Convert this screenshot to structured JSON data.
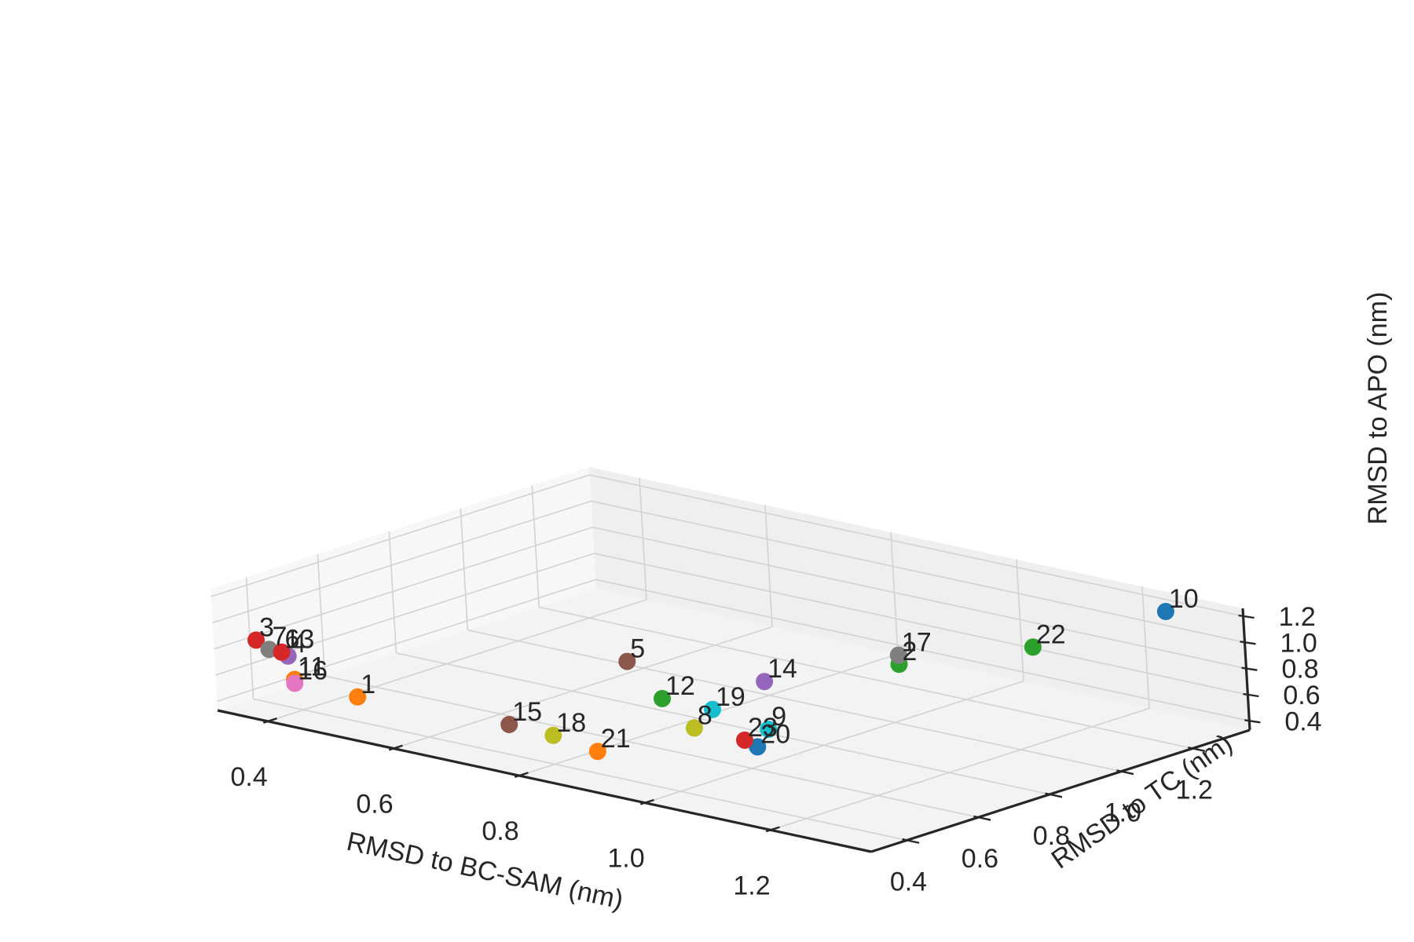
{
  "chart_data": {
    "type": "scatter",
    "projection": "3d",
    "title": "",
    "xlabel": "RMSD to BC-SAM (nm)",
    "ylabel": "RMSD to TC (nm)",
    "zlabel": "RMSD to APO (nm)",
    "xlim": [
      0.32,
      1.36
    ],
    "ylim": [
      0.3,
      1.36
    ],
    "zlim": [
      0.33,
      1.26
    ],
    "xticks": [
      "0.4",
      "0.6",
      "0.8",
      "1.0",
      "1.2"
    ],
    "yticks": [
      "0.4",
      "0.6",
      "0.8",
      "1.0",
      "1.2"
    ],
    "zticks": [
      "0.4",
      "0.6",
      "0.8",
      "1.0",
      "1.2"
    ],
    "grid": true,
    "legend": "none",
    "points": [
      {
        "label": "1",
        "x": 0.5,
        "y": 0.38,
        "z": 0.55,
        "color": "#ff7f0e"
      },
      {
        "label": "2",
        "x": 1.1,
        "y": 0.85,
        "z": 1.01,
        "color": "#2ca02c"
      },
      {
        "label": "3",
        "x": 0.33,
        "y": 0.4,
        "z": 0.79,
        "color": "#d62728"
      },
      {
        "label": "4",
        "x": 0.38,
        "y": 0.4,
        "z": 0.72,
        "color": "#9467bd"
      },
      {
        "label": "5",
        "x": 0.75,
        "y": 0.7,
        "z": 0.8,
        "color": "#8c564b"
      },
      {
        "label": "6",
        "x": 0.37,
        "y": 0.4,
        "z": 0.74,
        "color": "#e377c2"
      },
      {
        "label": "7",
        "x": 0.35,
        "y": 0.4,
        "z": 0.74,
        "color": "#7f7f7f"
      },
      {
        "label": "8",
        "x": 0.94,
        "y": 0.55,
        "z": 0.62,
        "color": "#bcbd22"
      },
      {
        "label": "9",
        "x": 1.03,
        "y": 0.6,
        "z": 0.66,
        "color": "#17becf"
      },
      {
        "label": "10",
        "x": 1.3,
        "y": 1.25,
        "z": 1.27,
        "color": "#1f77b4"
      },
      {
        "label": "11",
        "x": 0.4,
        "y": 0.38,
        "z": 0.58,
        "color": "#ff7f0e"
      },
      {
        "label": "12",
        "x": 0.85,
        "y": 0.62,
        "z": 0.69,
        "color": "#2ca02c"
      },
      {
        "label": "13",
        "x": 0.37,
        "y": 0.4,
        "z": 0.74,
        "color": "#d62728"
      },
      {
        "label": "14",
        "x": 0.94,
        "y": 0.75,
        "z": 0.8,
        "color": "#9467bd"
      },
      {
        "label": "15",
        "x": 0.73,
        "y": 0.4,
        "z": 0.56,
        "color": "#8c564b"
      },
      {
        "label": "16",
        "x": 0.4,
        "y": 0.38,
        "z": 0.55,
        "color": "#e377c2"
      },
      {
        "label": "17",
        "x": 1.1,
        "y": 0.85,
        "z": 1.08,
        "color": "#7f7f7f"
      },
      {
        "label": "18",
        "x": 0.8,
        "y": 0.4,
        "z": 0.55,
        "color": "#bcbd22"
      },
      {
        "label": "19",
        "x": 0.93,
        "y": 0.62,
        "z": 0.69,
        "color": "#17becf"
      },
      {
        "label": "20",
        "x": 1.04,
        "y": 0.55,
        "z": 0.58,
        "color": "#1f77b4"
      },
      {
        "label": "21",
        "x": 0.87,
        "y": 0.4,
        "z": 0.5,
        "color": "#ff7f0e"
      },
      {
        "label": "22",
        "x": 1.2,
        "y": 1.05,
        "z": 1.07,
        "color": "#2ca02c"
      },
      {
        "label": "23",
        "x": 1.02,
        "y": 0.55,
        "z": 0.61,
        "color": "#d62728"
      }
    ]
  }
}
